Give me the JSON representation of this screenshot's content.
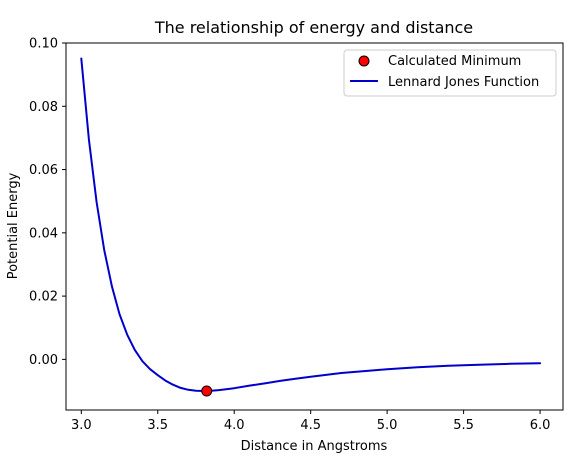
{
  "chart_data": {
    "type": "line",
    "title": "The relationship of energy and distance",
    "xlabel": "Distance in Angstroms",
    "ylabel": "Potential Energy",
    "xlim": [
      2.9,
      6.15
    ],
    "ylim": [
      -0.016,
      0.1
    ],
    "xticks": [
      3.0,
      3.5,
      4.0,
      4.5,
      5.0,
      5.5,
      6.0
    ],
    "xtick_labels": [
      "3.0",
      "3.5",
      "4.0",
      "4.5",
      "5.0",
      "5.5",
      "6.0"
    ],
    "yticks": [
      0.0,
      0.02,
      0.04,
      0.06,
      0.08,
      0.1
    ],
    "ytick_labels": [
      "0.00",
      "0.02",
      "0.04",
      "0.06",
      "0.08",
      "0.10"
    ],
    "grid": false,
    "legend_position": "top-right",
    "series": [
      {
        "name": "Lennard Jones Function",
        "type": "line",
        "color": "#0000cc",
        "x": [
          3.0,
          3.05,
          3.1,
          3.15,
          3.2,
          3.25,
          3.3,
          3.35,
          3.4,
          3.45,
          3.5,
          3.55,
          3.6,
          3.65,
          3.7,
          3.75,
          3.8,
          3.85,
          3.9,
          4.0,
          4.1,
          4.2,
          4.3,
          4.4,
          4.5,
          4.6,
          4.7,
          4.8,
          4.9,
          5.0,
          5.2,
          5.4,
          5.6,
          5.8,
          6.0
        ],
        "y": [
          0.0951,
          0.0695,
          0.0497,
          0.0346,
          0.0231,
          0.0143,
          0.0078,
          0.003,
          -0.0006,
          -0.0031,
          -0.005,
          -0.0067,
          -0.008,
          -0.009,
          -0.0096,
          -0.0099,
          -0.01,
          -0.0099,
          -0.0097,
          -0.0091,
          -0.0083,
          -0.0076,
          -0.0068,
          -0.0061,
          -0.0055,
          -0.0049,
          -0.0043,
          -0.0039,
          -0.0035,
          -0.0031,
          -0.0025,
          -0.002,
          -0.0017,
          -0.0014,
          -0.0012
        ]
      },
      {
        "name": "Calculated Minimum",
        "type": "scatter",
        "color": "#ff0000",
        "x": [
          3.82
        ],
        "y": [
          -0.01
        ]
      }
    ]
  }
}
